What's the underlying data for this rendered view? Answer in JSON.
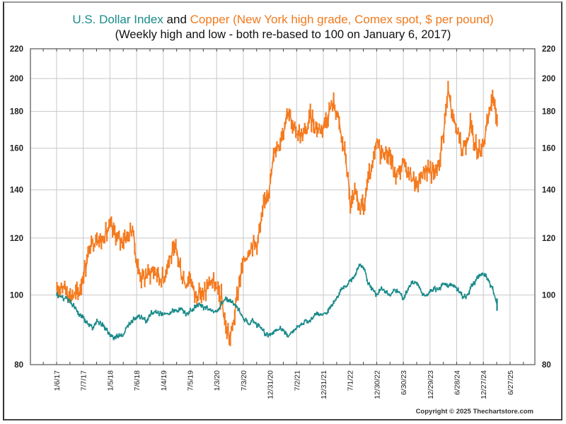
{
  "title": {
    "part1": "U.S. Dollar Index",
    "part2": " and ",
    "part3": "Copper (New York high grade, Comex spot, $ per pound)",
    "subtitle": "(Weekly high and low - both re-based to 100 on January 6, 2017)"
  },
  "copyright": "Copyright © 2025 Thechartstore.com",
  "colors": {
    "dollar": "#1b8a8a",
    "copper": "#f57a1e",
    "grid": "#c8c8c8",
    "axis": "#444444"
  },
  "chart_data": {
    "type": "line",
    "title": "U.S. Dollar Index and Copper (New York high grade, Comex spot, $ per pound)",
    "subtitle": "(Weekly high and low - both re-based to 100 on January 6, 2017)",
    "xlabel": "",
    "ylabel": "",
    "yscale": "log",
    "ylim": [
      80,
      220
    ],
    "xlim": [
      "2016-07-08",
      "2025-12-26"
    ],
    "grid": true,
    "legend": "in-title",
    "y_ticks": [
      80,
      100,
      120,
      140,
      160,
      180,
      200,
      220
    ],
    "x_tick_labels": [
      "1/6/17",
      "7/7/17",
      "1/5/18",
      "7/6/18",
      "1/4/19",
      "7/5/19",
      "1/3/20",
      "7/3/20",
      "12/31/20",
      "7/2/21",
      "12/31/21",
      "7/1/22",
      "12/30/22",
      "6/30/23",
      "12/29/23",
      "6/28/24",
      "12/27/24",
      "6/27/25"
    ],
    "x": [
      "2017-01",
      "2017-02",
      "2017-03",
      "2017-04",
      "2017-05",
      "2017-06",
      "2017-07",
      "2017-08",
      "2017-09",
      "2017-10",
      "2017-11",
      "2017-12",
      "2018-01",
      "2018-02",
      "2018-03",
      "2018-04",
      "2018-05",
      "2018-06",
      "2018-07",
      "2018-08",
      "2018-09",
      "2018-10",
      "2018-11",
      "2018-12",
      "2019-01",
      "2019-02",
      "2019-03",
      "2019-04",
      "2019-05",
      "2019-06",
      "2019-07",
      "2019-08",
      "2019-09",
      "2019-10",
      "2019-11",
      "2019-12",
      "2020-01",
      "2020-02",
      "2020-03",
      "2020-04",
      "2020-05",
      "2020-06",
      "2020-07",
      "2020-08",
      "2020-09",
      "2020-10",
      "2020-11",
      "2020-12",
      "2021-01",
      "2021-02",
      "2021-03",
      "2021-04",
      "2021-05",
      "2021-06",
      "2021-07",
      "2021-08",
      "2021-09",
      "2021-10",
      "2021-11",
      "2021-12",
      "2022-01",
      "2022-02",
      "2022-03",
      "2022-04",
      "2022-05",
      "2022-06",
      "2022-07",
      "2022-08",
      "2022-09",
      "2022-10",
      "2022-11",
      "2022-12",
      "2023-01",
      "2023-02",
      "2023-03",
      "2023-04",
      "2023-05",
      "2023-06",
      "2023-07",
      "2023-08",
      "2023-09",
      "2023-10",
      "2023-11",
      "2023-12",
      "2024-01",
      "2024-02",
      "2024-03",
      "2024-04",
      "2024-05",
      "2024-06",
      "2024-07",
      "2024-08",
      "2024-09",
      "2024-10",
      "2024-11",
      "2024-12",
      "2025-01",
      "2025-02",
      "2025-03",
      "2025-04"
    ],
    "series": [
      {
        "name": "Copper (New York high grade, Comex spot, $ per pound)",
        "color": "#f57a1e",
        "values": [
          100,
          104,
          102,
          100,
          100,
          101,
          107,
          114,
          118,
          121,
          119,
          122,
          124,
          122,
          119,
          120,
          121,
          124,
          110,
          106,
          106,
          108,
          108,
          106,
          105,
          112,
          114,
          115,
          107,
          104,
          106,
          100,
          101,
          100,
          103,
          105,
          101,
          99,
          90,
          87,
          94,
          104,
          111,
          115,
          118,
          118,
          126,
          138,
          143,
          160,
          163,
          171,
          182,
          170,
          169,
          167,
          168,
          177,
          172,
          170,
          173,
          178,
          185,
          180,
          165,
          155,
          133,
          137,
          133,
          132,
          144,
          150,
          163,
          158,
          158,
          156,
          146,
          149,
          152,
          148,
          146,
          141,
          147,
          150,
          149,
          147,
          153,
          170,
          192,
          177,
          170,
          158,
          164,
          172,
          162,
          158,
          164,
          174,
          190,
          175
        ]
      },
      {
        "name": "U.S. Dollar Index",
        "color": "#1b8a8a",
        "values": [
          100,
          99,
          99,
          98,
          96,
          94,
          93,
          91,
          90,
          92,
          91,
          90,
          88,
          87,
          88,
          88,
          91,
          92,
          93,
          93,
          92,
          94,
          95,
          94,
          94,
          94,
          95,
          95,
          96,
          94,
          95,
          96,
          97,
          96,
          96,
          95,
          95,
          97,
          99,
          98,
          97,
          95,
          93,
          91,
          92,
          91,
          90,
          88,
          88,
          89,
          90,
          89,
          88,
          89,
          90,
          91,
          92,
          92,
          94,
          94,
          94,
          95,
          97,
          99,
          102,
          103,
          105,
          106,
          110,
          109,
          104,
          102,
          100,
          102,
          101,
          100,
          102,
          101,
          99,
          102,
          104,
          104,
          101,
          100,
          101,
          102,
          102,
          104,
          103,
          103,
          102,
          100,
          99,
          102,
          104,
          106,
          107,
          105,
          102,
          97
        ]
      }
    ]
  }
}
